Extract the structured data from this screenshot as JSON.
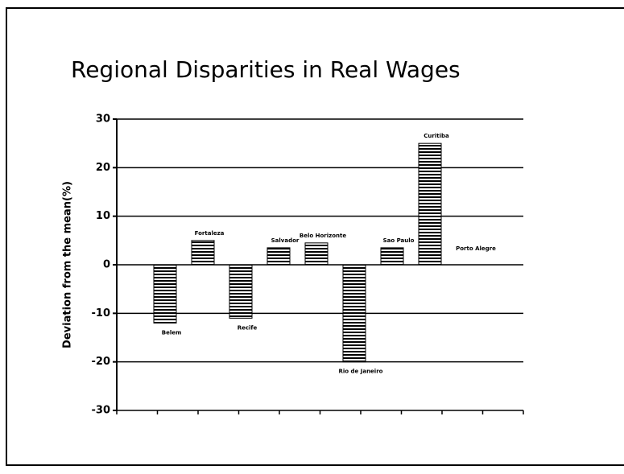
{
  "chart_data": {
    "type": "bar",
    "title": "Regional Disparities in Real Wages",
    "y_label": "Deviation from the mean(%)",
    "categories": [
      "Belem",
      "Fortaleza",
      "Recife",
      "Salvador",
      "Belo Horizonte",
      "Rio de Janeiro",
      "Sao Paulo",
      "Curitiba",
      "Porto Alegre"
    ],
    "values": [
      -12,
      5,
      -11,
      3.5,
      4.5,
      -20,
      3.5,
      25,
      0
    ],
    "color": "#000000",
    "ylim": [
      -30,
      30
    ],
    "yticks": [
      -30,
      -20,
      -10,
      0,
      10,
      20,
      30
    ],
    "grid": true
  }
}
